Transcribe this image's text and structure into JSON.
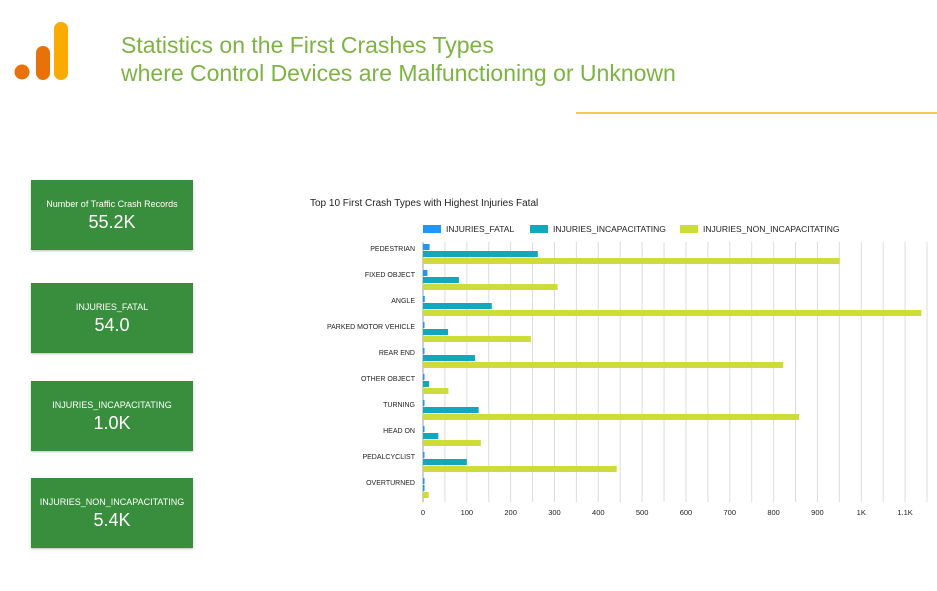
{
  "header": {
    "title_line1": "Statistics on the First Crashes Types",
    "title_line2": "where Control Devices are Malfunctioning or Unknown"
  },
  "logo": {
    "icon": "analytics-bars-icon",
    "colors": [
      "#e8710a",
      "#f9ab00",
      "#f9ab00"
    ]
  },
  "scorecards": [
    {
      "label": "Number of Traffic Crash Records",
      "value": "55.2K"
    },
    {
      "label": "INJURIES_FATAL",
      "value": "54.0"
    },
    {
      "label": "INJURIES_INCAPACITATING",
      "value": "1.0K"
    },
    {
      "label": "INJURIES_NON_INCAPACITATING",
      "value": "5.4K"
    }
  ],
  "colors": {
    "title": "#7cb342",
    "card": "#388e3c",
    "rule": "#f9c74f"
  },
  "chart_data": {
    "type": "bar",
    "orientation": "horizontal",
    "title": "Top 10 First Crash Types with Highest Injuries Fatal",
    "categories": [
      "PEDESTRIAN",
      "FIXED OBJECT",
      "ANGLE",
      "PARKED MOTOR VEHICLE",
      "REAR END",
      "OTHER OBJECT",
      "TURNING",
      "HEAD ON",
      "PEDALCYCLIST",
      "OVERTURNED"
    ],
    "series": [
      {
        "name": "INJURIES_FATAL",
        "color": "#2196f3",
        "values": [
          15,
          10,
          4,
          3,
          3,
          2,
          2,
          2,
          2,
          2
        ]
      },
      {
        "name": "INJURIES_INCAPACITATING",
        "color": "#12a7bb",
        "values": [
          262,
          82,
          157,
          57,
          119,
          14,
          127,
          35,
          100,
          2
        ]
      },
      {
        "name": "INJURIES_NON_INCAPACITATING",
        "color": "#cddc39",
        "values": [
          951,
          307,
          1137,
          246,
          822,
          58,
          858,
          132,
          442,
          13
        ]
      }
    ],
    "xlim": [
      0,
      1150
    ],
    "xticks": [
      {
        "value": 0,
        "label": "0"
      },
      {
        "value": 100,
        "label": "100"
      },
      {
        "value": 200,
        "label": "200"
      },
      {
        "value": 300,
        "label": "300"
      },
      {
        "value": 400,
        "label": "400"
      },
      {
        "value": 500,
        "label": "500"
      },
      {
        "value": 600,
        "label": "600"
      },
      {
        "value": 700,
        "label": "700"
      },
      {
        "value": 800,
        "label": "800"
      },
      {
        "value": 900,
        "label": "900"
      },
      {
        "value": 1000,
        "label": "1K"
      },
      {
        "value": 1100,
        "label": "1.1K"
      }
    ],
    "minor_grid_step": 50,
    "grid": true,
    "legend_position": "top"
  }
}
